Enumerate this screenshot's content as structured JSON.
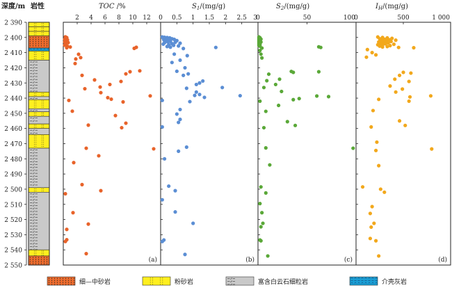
{
  "header": {
    "depth_label": "深度/m",
    "lith_label": "岩性"
  },
  "depth_axis": {
    "min": 2390,
    "max": 2550,
    "step": 10,
    "labels": [
      "2 390",
      "2 400",
      "2 410",
      "2 420",
      "2 430",
      "2 440",
      "2 450",
      "2 460",
      "2 470",
      "2 480",
      "2 490",
      "2 500",
      "2 510",
      "2 520",
      "2 530",
      "2 540",
      "2 550"
    ]
  },
  "lithology": {
    "types": {
      "medium_sand": {
        "label": "细—中砂岩",
        "color": "#ec6b2d"
      },
      "siltstone": {
        "label": "粉砂岩",
        "color": "#ffef1f"
      },
      "dolomitic_fine": {
        "label": "富含白云石细粒岩",
        "color": "#c9c9c9"
      },
      "shell_limestone": {
        "label": "介壳灰岩",
        "color": "#1aa0d6"
      }
    },
    "intervals": [
      {
        "top": 2390.0,
        "bottom": 2393.0,
        "type": "siltstone"
      },
      {
        "top": 2393.0,
        "bottom": 2396.0,
        "type": "siltstone"
      },
      {
        "top": 2396.0,
        "bottom": 2399.0,
        "type": "siltstone"
      },
      {
        "top": 2399.0,
        "bottom": 2407.0,
        "type": "medium_sand"
      },
      {
        "top": 2407.0,
        "bottom": 2409.0,
        "type": "shell_limestone"
      },
      {
        "top": 2409.0,
        "bottom": 2415.0,
        "type": "siltstone"
      },
      {
        "top": 2415.0,
        "bottom": 2436.0,
        "type": "dolomitic_fine"
      },
      {
        "top": 2436.0,
        "bottom": 2439.0,
        "type": "siltstone"
      },
      {
        "top": 2439.0,
        "bottom": 2441.0,
        "type": "dolomitic_fine"
      },
      {
        "top": 2441.0,
        "bottom": 2447.0,
        "type": "siltstone"
      },
      {
        "top": 2447.0,
        "bottom": 2449.0,
        "type": "dolomitic_fine"
      },
      {
        "top": 2449.0,
        "bottom": 2452.0,
        "type": "siltstone"
      },
      {
        "top": 2452.0,
        "bottom": 2457.0,
        "type": "dolomitic_fine"
      },
      {
        "top": 2457.0,
        "bottom": 2460.0,
        "type": "siltstone"
      },
      {
        "top": 2460.0,
        "bottom": 2464.0,
        "type": "dolomitic_fine"
      },
      {
        "top": 2464.0,
        "bottom": 2473.0,
        "type": "siltstone"
      },
      {
        "top": 2473.0,
        "bottom": 2499.0,
        "type": "dolomitic_fine"
      },
      {
        "top": 2499.0,
        "bottom": 2502.0,
        "type": "siltstone"
      },
      {
        "top": 2502.0,
        "bottom": 2540.0,
        "type": "dolomitic_fine"
      },
      {
        "top": 2540.0,
        "bottom": 2544.0,
        "type": "siltstone"
      },
      {
        "top": 2544.0,
        "bottom": 2550.0,
        "type": "medium_sand"
      }
    ]
  },
  "chart_data": [
    {
      "type": "scatter",
      "panel_label": "(a)",
      "title": "TOC /%",
      "xlim": [
        0,
        14
      ],
      "xticks": [
        2,
        4,
        6,
        8,
        10,
        12
      ],
      "color": "#e8632a",
      "points": [
        [
          0.3,
          2399.6
        ],
        [
          0.5,
          2400.1
        ],
        [
          0.4,
          2400.7
        ],
        [
          0.2,
          2401.2
        ],
        [
          0.6,
          2401.6
        ],
        [
          0.3,
          2402.1
        ],
        [
          0.5,
          2402.5
        ],
        [
          0.2,
          2403.0
        ],
        [
          0.7,
          2403.4
        ],
        [
          0.4,
          2403.9
        ],
        [
          0.3,
          2404.5
        ],
        [
          0.2,
          2405.1
        ],
        [
          0.6,
          2405.8
        ],
        [
          1.0,
          2406.3
        ],
        [
          0.5,
          2406.8
        ],
        [
          10.5,
          2406.5
        ],
        [
          10.2,
          2407.2
        ],
        [
          2.2,
          2411.1
        ],
        [
          2.5,
          2413.3
        ],
        [
          1.8,
          2414.2
        ],
        [
          1.7,
          2417.2
        ],
        [
          11.0,
          2422.0
        ],
        [
          9.6,
          2422.6
        ],
        [
          9.0,
          2424.0
        ],
        [
          2.7,
          2425.0
        ],
        [
          4.5,
          2428.0
        ],
        [
          8.3,
          2429.0
        ],
        [
          6.7,
          2431.0
        ],
        [
          5.3,
          2432.7
        ],
        [
          3.1,
          2433.8
        ],
        [
          5.4,
          2436.4
        ],
        [
          12.5,
          2438.5
        ],
        [
          6.4,
          2439.7
        ],
        [
          6.9,
          2440.7
        ],
        [
          0.8,
          2441.5
        ],
        [
          8.6,
          2442.5
        ],
        [
          1.3,
          2448.6
        ],
        [
          7.5,
          2451.5
        ],
        [
          9.0,
          2456.5
        ],
        [
          3.6,
          2457.8
        ],
        [
          8.4,
          2459.5
        ],
        [
          3.3,
          2473.0
        ],
        [
          13.0,
          2473.4
        ],
        [
          5.1,
          2478.0
        ],
        [
          1.5,
          2482.5
        ],
        [
          2.7,
          2497.0
        ],
        [
          5.4,
          2501.0
        ],
        [
          0.3,
          2503.0
        ],
        [
          1.4,
          2515.5
        ],
        [
          3.6,
          2523.0
        ],
        [
          0.5,
          2526.5
        ],
        [
          0.5,
          2533.3
        ],
        [
          0.3,
          2534.5
        ],
        [
          3.3,
          2542.5
        ]
      ]
    },
    {
      "type": "scatter",
      "panel_label": "(b)",
      "title": "S1/(mg/g)",
      "xlim": [
        0,
        3
      ],
      "xticks": [
        0,
        0.5,
        1,
        1.5,
        2,
        2.5,
        3
      ],
      "xtick_labels": [
        "0",
        "0.5",
        "1",
        "1.5",
        "2",
        "2.5",
        "3"
      ],
      "color": "#5b8ed4",
      "points": [
        [
          0.05,
          2399.7
        ],
        [
          0.12,
          2399.9
        ],
        [
          0.2,
          2400.1
        ],
        [
          0.28,
          2400.3
        ],
        [
          0.08,
          2400.6
        ],
        [
          0.35,
          2400.9
        ],
        [
          0.18,
          2401.1
        ],
        [
          0.42,
          2401.3
        ],
        [
          0.1,
          2401.6
        ],
        [
          0.25,
          2401.9
        ],
        [
          0.5,
          2402.1
        ],
        [
          0.15,
          2402.3
        ],
        [
          0.3,
          2402.6
        ],
        [
          0.22,
          2402.9
        ],
        [
          0.45,
          2403.2
        ],
        [
          0.12,
          2403.5
        ],
        [
          0.6,
          2403.8
        ],
        [
          0.35,
          2404.1
        ],
        [
          0.08,
          2404.4
        ],
        [
          0.25,
          2404.8
        ],
        [
          0.4,
          2405.2
        ],
        [
          0.55,
          2405.6
        ],
        [
          0.2,
          2406.0
        ],
        [
          0.3,
          2406.4
        ],
        [
          1.7,
          2406.6
        ],
        [
          0.7,
          2407.3
        ],
        [
          0.42,
          2411.0
        ],
        [
          0.82,
          2412.0
        ],
        [
          0.6,
          2415.0
        ],
        [
          0.35,
          2416.5
        ],
        [
          0.75,
          2420.0
        ],
        [
          0.5,
          2422.3
        ],
        [
          0.85,
          2424.0
        ],
        [
          0.7,
          2425.0
        ],
        [
          1.3,
          2428.7
        ],
        [
          1.2,
          2430.0
        ],
        [
          1.1,
          2431.0
        ],
        [
          1.9,
          2433.0
        ],
        [
          0.8,
          2433.5
        ],
        [
          1.1,
          2436.0
        ],
        [
          1.2,
          2437.6
        ],
        [
          1.05,
          2438.2
        ],
        [
          2.45,
          2438.4
        ],
        [
          1.35,
          2439.5
        ],
        [
          0.9,
          2442.3
        ],
        [
          0.05,
          2441.5
        ],
        [
          0.6,
          2447.5
        ],
        [
          0.5,
          2450.5
        ],
        [
          0.6,
          2454.0
        ],
        [
          0.55,
          2456.0
        ],
        [
          0.05,
          2459.0
        ],
        [
          0.8,
          2472.3
        ],
        [
          0.55,
          2475.0
        ],
        [
          0.12,
          2480.0
        ],
        [
          0.25,
          2498.0
        ],
        [
          0.45,
          2501.0
        ],
        [
          0.05,
          2507.0
        ],
        [
          0.45,
          2515.0
        ],
        [
          1.0,
          2522.5
        ],
        [
          0.1,
          2533.5
        ],
        [
          0.05,
          2534.5
        ],
        [
          0.75,
          2543.0
        ]
      ]
    },
    {
      "type": "scatter",
      "panel_label": "(c)",
      "title": "S2/(mg/g)",
      "xlim": [
        0,
        100
      ],
      "xticks": [
        0,
        50,
        100
      ],
      "color": "#5aa838",
      "points": [
        [
          1,
          2399.7
        ],
        [
          2,
          2400.2
        ],
        [
          1,
          2400.7
        ],
        [
          3,
          2401.1
        ],
        [
          1,
          2401.6
        ],
        [
          2,
          2402.0
        ],
        [
          1,
          2402.5
        ],
        [
          3,
          2403.0
        ],
        [
          1,
          2403.4
        ],
        [
          2,
          2403.9
        ],
        [
          1,
          2404.3
        ],
        [
          2,
          2404.8
        ],
        [
          1,
          2405.3
        ],
        [
          2,
          2405.8
        ],
        [
          62,
          2406.2
        ],
        [
          64,
          2406.6
        ],
        [
          4,
          2407.0
        ],
        [
          2,
          2408.6
        ],
        [
          3,
          2411.0
        ],
        [
          4,
          2413.5
        ],
        [
          34,
          2422.4
        ],
        [
          36,
          2423.0
        ],
        [
          62,
          2422.6
        ],
        [
          11,
          2424.2
        ],
        [
          22,
          2427.5
        ],
        [
          9,
          2428.5
        ],
        [
          18,
          2431.0
        ],
        [
          6,
          2433.0
        ],
        [
          24,
          2435.6
        ],
        [
          60,
          2438.6
        ],
        [
          72,
          2439.0
        ],
        [
          42,
          2440.3
        ],
        [
          36,
          2441.0
        ],
        [
          2,
          2442.0
        ],
        [
          21,
          2444.8
        ],
        [
          8,
          2448.7
        ],
        [
          30,
          2455.5
        ],
        [
          38,
          2458.0
        ],
        [
          6,
          2459.5
        ],
        [
          97,
          2473.0
        ],
        [
          8,
          2472.8
        ],
        [
          12,
          2484.0
        ],
        [
          3,
          2498.5
        ],
        [
          8,
          2502.5
        ],
        [
          2,
          2509.5
        ],
        [
          4,
          2515.5
        ],
        [
          5,
          2522.5
        ],
        [
          3,
          2524.8
        ],
        [
          2,
          2533.5
        ],
        [
          3,
          2534.0
        ],
        [
          10,
          2544.0
        ]
      ]
    },
    {
      "type": "scatter",
      "panel_label": "(d)",
      "title": "IH/(mg/g)",
      "xlim": [
        0,
        1000
      ],
      "xticks": [
        0,
        500,
        1000
      ],
      "xtick_labels": [
        "0",
        "500",
        "1 000"
      ],
      "color": "#f2a81c",
      "points": [
        [
          230,
          2399.7
        ],
        [
          280,
          2400.0
        ],
        [
          330,
          2400.3
        ],
        [
          380,
          2400.6
        ],
        [
          250,
          2400.9
        ],
        [
          300,
          2401.2
        ],
        [
          350,
          2401.5
        ],
        [
          420,
          2401.8
        ],
        [
          270,
          2402.1
        ],
        [
          320,
          2402.4
        ],
        [
          370,
          2402.7
        ],
        [
          240,
          2403.0
        ],
        [
          290,
          2403.3
        ],
        [
          340,
          2403.6
        ],
        [
          260,
          2403.9
        ],
        [
          310,
          2404.2
        ],
        [
          400,
          2404.5
        ],
        [
          230,
          2404.8
        ],
        [
          280,
          2405.1
        ],
        [
          360,
          2405.4
        ],
        [
          250,
          2405.7
        ],
        [
          330,
          2406.0
        ],
        [
          280,
          2406.3
        ],
        [
          450,
          2406.6
        ],
        [
          610,
          2406.8
        ],
        [
          120,
          2408.0
        ],
        [
          170,
          2410.0
        ],
        [
          210,
          2411.5
        ],
        [
          110,
          2413.0
        ],
        [
          500,
          2423.0
        ],
        [
          580,
          2423.5
        ],
        [
          460,
          2425.0
        ],
        [
          410,
          2427.5
        ],
        [
          560,
          2429.0
        ],
        [
          360,
          2432.0
        ],
        [
          490,
          2434.0
        ],
        [
          420,
          2436.0
        ],
        [
          790,
          2438.5
        ],
        [
          570,
          2439.2
        ],
        [
          240,
          2440.8
        ],
        [
          560,
          2442.0
        ],
        [
          180,
          2448.2
        ],
        [
          460,
          2455.0
        ],
        [
          520,
          2458.0
        ],
        [
          160,
          2459.0
        ],
        [
          220,
          2469.0
        ],
        [
          800,
          2473.5
        ],
        [
          210,
          2474.5
        ],
        [
          240,
          2484.5
        ],
        [
          70,
          2498.5
        ],
        [
          260,
          2500.0
        ],
        [
          300,
          2502.0
        ],
        [
          170,
          2511.5
        ],
        [
          150,
          2516.0
        ],
        [
          190,
          2522.5
        ],
        [
          160,
          2525.0
        ],
        [
          150,
          2532.5
        ],
        [
          210,
          2534.0
        ],
        [
          240,
          2544.0
        ]
      ]
    }
  ]
}
